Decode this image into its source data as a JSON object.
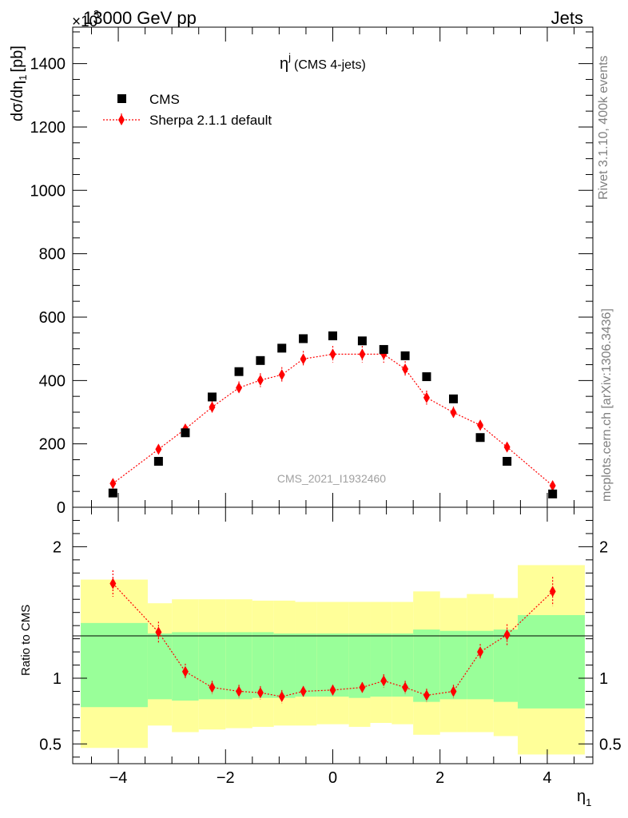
{
  "header": {
    "energy_label": "13000 GeV pp",
    "exponent_label": "×10",
    "exponent_power": "3",
    "category_label": "Jets"
  },
  "side_labels": {
    "rivet": "Rivet 3.1.10,  400k events",
    "mcplots": "mcplots.cern.ch [arXiv:1306.3436]"
  },
  "chart_data": [
    {
      "type": "scatter",
      "title": "η",
      "title_superscript": "j",
      "title_suffix": "(CMS 4-jets)",
      "analysis_label": "CMS_2021_I1932460",
      "ylabel": "dσ/dη",
      "ylabel_subscript": "1",
      "ylabel_unit": "[pb]",
      "xlabel": "η",
      "xlabel_subscript": "1",
      "xlim": [
        -4.85,
        4.85
      ],
      "ylim": [
        0,
        1515
      ],
      "y_ticks": [
        0,
        200,
        400,
        600,
        800,
        1000,
        1200,
        1400
      ],
      "y_tick_labels": [
        "0",
        "200",
        "400",
        "600",
        "800",
        "1000",
        "1200",
        "1400"
      ],
      "legend_position": "top-left",
      "grid": false,
      "x": [
        -4.1,
        -3.25,
        -2.75,
        -2.25,
        -1.75,
        -1.35,
        -0.95,
        -0.55,
        0.0,
        0.55,
        0.95,
        1.35,
        1.75,
        2.25,
        2.75,
        3.25,
        4.1
      ],
      "series": [
        {
          "name": "CMS",
          "marker": "square",
          "color": "#000000",
          "values": [
            45,
            145,
            235,
            348,
            428,
            463,
            502,
            532,
            541,
            525,
            498,
            478,
            412,
            342,
            220,
            145,
            42
          ]
        },
        {
          "name": "Sherpa 2.1.1 default",
          "marker": "diamond",
          "color": "#ff0000",
          "line": "dotted",
          "values": [
            75,
            183,
            247,
            316,
            377,
            401,
            418,
            468,
            483,
            483,
            483,
            436,
            346,
            299,
            259,
            190,
            68
          ],
          "errors": [
            9,
            12,
            15,
            18,
            20,
            22,
            24,
            25,
            26,
            26,
            27,
            25,
            22,
            19,
            16,
            13,
            8
          ]
        }
      ]
    },
    {
      "type": "scatter",
      "ylabel": "Ratio to CMS",
      "xlabel": "η",
      "xlabel_subscript": "1",
      "xlim": [
        -4.85,
        4.85
      ],
      "ylim": [
        0.35,
        2.3
      ],
      "y_ticks": [
        0.5,
        1,
        2
      ],
      "y_tick_labels": [
        "0.5",
        "1",
        "2"
      ],
      "x_ticks": [
        -4,
        -2,
        0,
        2,
        4
      ],
      "x_tick_labels": [
        "−4",
        "−2",
        "0",
        "2",
        "4"
      ],
      "reference_line": 1,
      "bin_edges": [
        -4.7,
        -3.45,
        -3.0,
        -2.5,
        -2.0,
        -1.5,
        -1.1,
        -0.7,
        -0.3,
        0.3,
        0.7,
        1.1,
        1.5,
        2.0,
        2.5,
        3.0,
        3.45,
        4.7
      ],
      "band_inner": {
        "color": "#99ff99",
        "low": [
          0.78,
          0.84,
          0.83,
          0.84,
          0.84,
          0.85,
          0.85,
          0.86,
          0.86,
          0.85,
          0.86,
          0.86,
          0.82,
          0.84,
          0.84,
          0.82,
          0.77
        ],
        "high": [
          1.42,
          1.34,
          1.35,
          1.35,
          1.35,
          1.35,
          1.34,
          1.34,
          1.34,
          1.34,
          1.34,
          1.34,
          1.37,
          1.36,
          1.36,
          1.37,
          1.48
        ]
      },
      "band_outer": {
        "color": "#ffff99",
        "low": [
          0.47,
          0.64,
          0.59,
          0.61,
          0.62,
          0.63,
          0.64,
          0.64,
          0.65,
          0.63,
          0.66,
          0.65,
          0.57,
          0.59,
          0.59,
          0.56,
          0.42
        ],
        "high": [
          1.75,
          1.57,
          1.6,
          1.6,
          1.6,
          1.59,
          1.59,
          1.58,
          1.58,
          1.58,
          1.58,
          1.58,
          1.66,
          1.61,
          1.64,
          1.61,
          1.86
        ]
      },
      "series": [
        {
          "name": "Sherpa 2.1.1 default",
          "marker": "diamond",
          "color": "#ff0000",
          "line": "dotted",
          "values": [
            1.72,
            1.35,
            1.05,
            0.93,
            0.9,
            0.89,
            0.86,
            0.9,
            0.91,
            0.93,
            0.98,
            0.93,
            0.87,
            0.9,
            1.2,
            1.33,
            1.66
          ],
          "errors": [
            0.1,
            0.08,
            0.06,
            0.05,
            0.05,
            0.05,
            0.05,
            0.04,
            0.04,
            0.04,
            0.05,
            0.05,
            0.05,
            0.05,
            0.06,
            0.08,
            0.11
          ]
        }
      ]
    }
  ]
}
